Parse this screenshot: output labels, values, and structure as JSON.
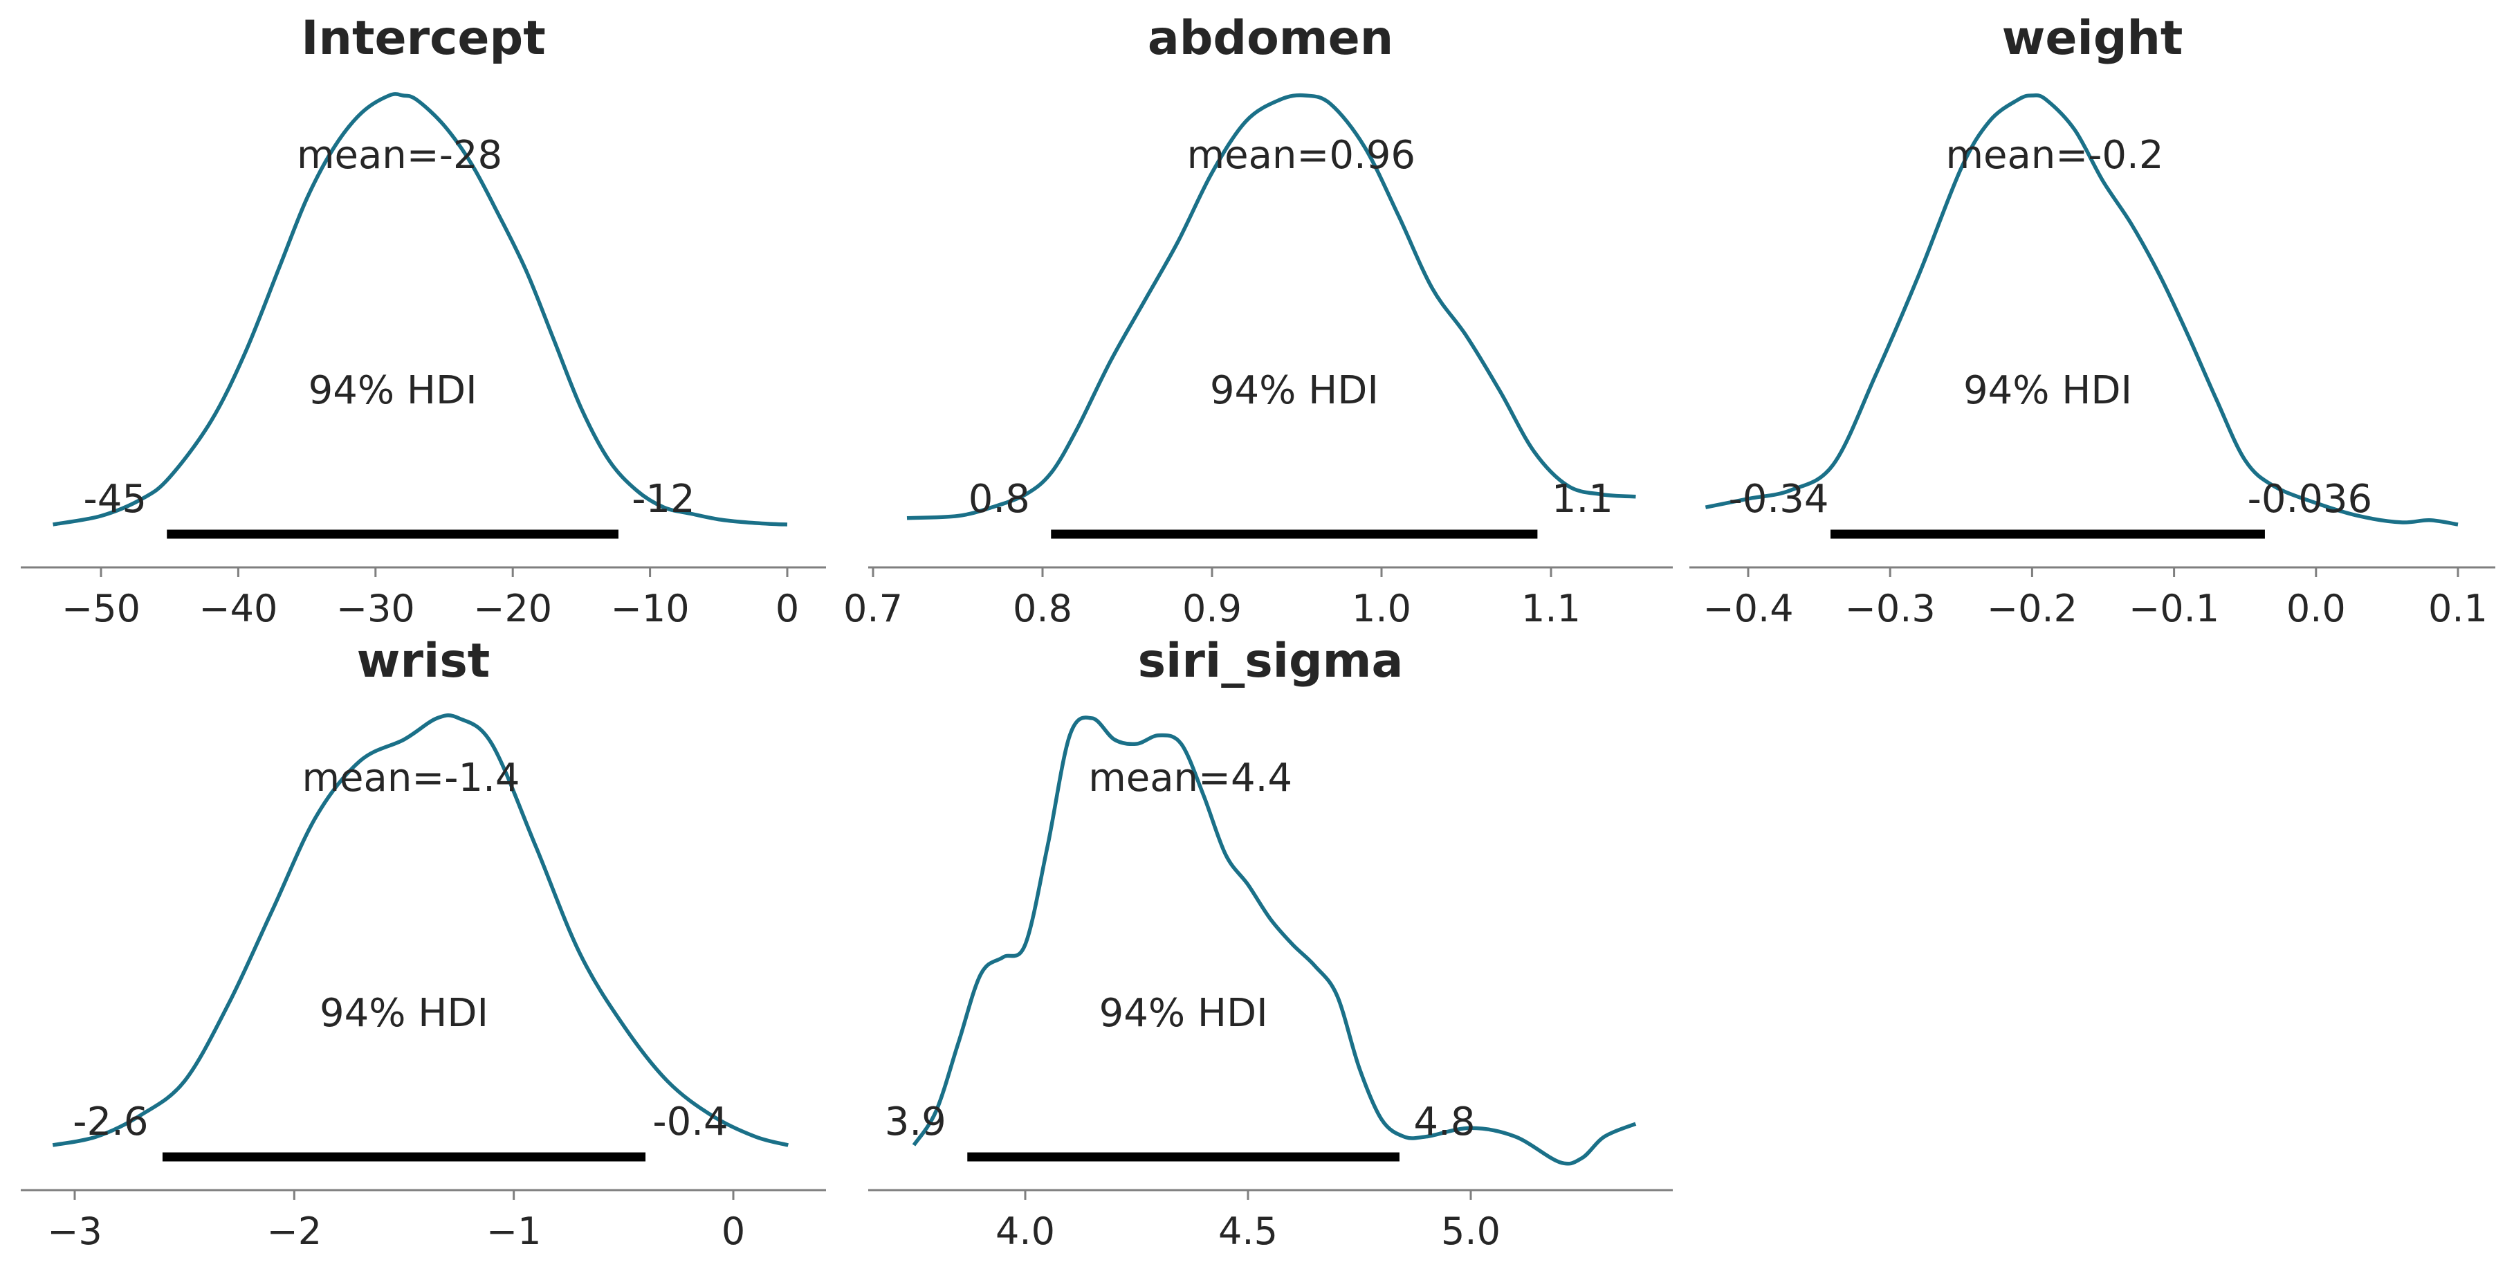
{
  "chart_data": [
    {
      "type": "density",
      "title": "Intercept",
      "mean_label": "mean=-28",
      "hdi_label": "94% HDI",
      "hdi": [
        -45.2,
        -12.3
      ],
      "hdi_low_label": "-45",
      "hdi_high_label": "-12",
      "xlim": [
        -54,
        0.3
      ],
      "ticks": [
        -50,
        -40,
        -30,
        -20,
        -10,
        0
      ],
      "tick_labels": [
        "−50",
        "−40",
        "−30",
        "−20",
        "−10",
        "0"
      ],
      "x": [
        -53.5,
        -50,
        -47,
        -45,
        -42,
        -39.5,
        -37,
        -35,
        -33,
        -31,
        -29,
        -28,
        -27,
        -25,
        -23,
        -21,
        -19,
        -17,
        -15,
        -13,
        -11,
        -9,
        -7,
        -5,
        -3,
        -1,
        0
      ],
      "density": [
        0.0,
        0.02,
        0.06,
        0.11,
        0.24,
        0.4,
        0.6,
        0.76,
        0.88,
        0.96,
        1.0,
        1.0,
        0.99,
        0.93,
        0.84,
        0.72,
        0.59,
        0.43,
        0.27,
        0.15,
        0.08,
        0.04,
        0.025,
        0.012,
        0.005,
        0.001,
        0.0
      ]
    },
    {
      "type": "density",
      "title": "abdomen",
      "mean_label": "mean=0.96",
      "hdi_label": "94% HDI",
      "hdi": [
        0.805,
        1.092
      ],
      "hdi_low_label": "0.8",
      "hdi_high_label": "1.1",
      "xlim": [
        0.7,
        1.155
      ],
      "ticks": [
        0.7,
        0.8,
        0.9,
        1.0,
        1.1
      ],
      "tick_labels": [
        "0.7",
        "0.8",
        "0.9",
        "1.0",
        "1.1"
      ],
      "x": [
        0.72,
        0.75,
        0.77,
        0.79,
        0.805,
        0.82,
        0.84,
        0.86,
        0.88,
        0.9,
        0.92,
        0.94,
        0.955,
        0.97,
        0.99,
        1.01,
        1.03,
        1.05,
        1.07,
        1.09,
        1.11,
        1.13,
        1.15
      ],
      "density": [
        0.015,
        0.02,
        0.04,
        0.07,
        0.12,
        0.22,
        0.38,
        0.52,
        0.66,
        0.82,
        0.94,
        0.99,
        1.0,
        0.98,
        0.88,
        0.72,
        0.55,
        0.44,
        0.31,
        0.17,
        0.09,
        0.07,
        0.065
      ]
    },
    {
      "type": "density",
      "title": "weight",
      "mean_label": "mean=-0.2",
      "hdi_label": "94% HDI",
      "hdi": [
        -0.342,
        -0.036
      ],
      "hdi_low_label": "-0.34",
      "hdi_high_label": "-0.036",
      "xlim": [
        -0.44,
        0.12
      ],
      "ticks": [
        -0.4,
        -0.3,
        -0.2,
        -0.1,
        0.0,
        0.1
      ],
      "tick_labels": [
        "−0.4",
        "−0.3",
        "−0.2",
        "−0.1",
        "0.0",
        "0.1"
      ],
      "x": [
        -0.43,
        -0.4,
        -0.37,
        -0.34,
        -0.31,
        -0.28,
        -0.25,
        -0.23,
        -0.21,
        -0.2,
        -0.19,
        -0.17,
        -0.15,
        -0.13,
        -0.11,
        -0.09,
        -0.07,
        -0.05,
        -0.03,
        0.0,
        0.03,
        0.06,
        0.08,
        0.1
      ],
      "density": [
        0.04,
        0.06,
        0.08,
        0.14,
        0.35,
        0.58,
        0.83,
        0.94,
        0.99,
        1.0,
        0.99,
        0.92,
        0.8,
        0.7,
        0.58,
        0.44,
        0.29,
        0.15,
        0.09,
        0.05,
        0.02,
        0.005,
        0.01,
        0.0
      ]
    },
    {
      "type": "density",
      "title": "wrist",
      "mean_label": "mean=-1.4",
      "hdi_label": "94% HDI",
      "hdi": [
        -2.6,
        -0.4
      ],
      "hdi_low_label": "-2.6",
      "hdi_high_label": "-0.4",
      "xlim": [
        -3.2,
        0.3
      ],
      "ticks": [
        -3,
        -2,
        -1,
        0
      ],
      "tick_labels": [
        "−3",
        "−2",
        "−1",
        "0"
      ],
      "x": [
        -3.1,
        -2.9,
        -2.7,
        -2.5,
        -2.3,
        -2.1,
        -1.9,
        -1.7,
        -1.5,
        -1.35,
        -1.25,
        -1.1,
        -0.9,
        -0.7,
        -0.5,
        -0.3,
        -0.1,
        0.1,
        0.25
      ],
      "density": [
        0.0,
        0.02,
        0.07,
        0.15,
        0.33,
        0.55,
        0.77,
        0.9,
        0.95,
        1.0,
        1.0,
        0.94,
        0.7,
        0.45,
        0.28,
        0.15,
        0.07,
        0.02,
        0.0
      ]
    },
    {
      "type": "density",
      "title": "siri_sigma",
      "mean_label": "mean=4.4",
      "hdi_label": "94% HDI",
      "hdi": [
        3.87,
        4.84
      ],
      "hdi_low_label": "3.9",
      "hdi_high_label": "4.8",
      "xlim": [
        3.68,
        5.4
      ],
      "ticks": [
        4.0,
        4.5,
        5.0
      ],
      "tick_labels": [
        "4.0",
        "4.5",
        "5.0"
      ],
      "x": [
        3.75,
        3.8,
        3.85,
        3.9,
        3.95,
        4.0,
        4.05,
        4.1,
        4.15,
        4.2,
        4.25,
        4.3,
        4.35,
        4.4,
        4.45,
        4.5,
        4.55,
        4.6,
        4.65,
        4.7,
        4.75,
        4.8,
        4.85,
        4.9,
        5.0,
        5.1,
        5.2,
        5.25,
        5.3,
        5.37
      ],
      "density": [
        0.0,
        0.08,
        0.24,
        0.4,
        0.44,
        0.47,
        0.7,
        0.96,
        1.0,
        0.95,
        0.94,
        0.96,
        0.94,
        0.82,
        0.68,
        0.61,
        0.53,
        0.47,
        0.42,
        0.35,
        0.18,
        0.06,
        0.02,
        0.02,
        0.04,
        0.02,
        -0.04,
        -0.03,
        0.02,
        0.05
      ]
    }
  ],
  "colors": {
    "line": "#1a7088",
    "hdi_bar": "#000000",
    "axis": "#7f7f7f",
    "text": "#262626"
  }
}
